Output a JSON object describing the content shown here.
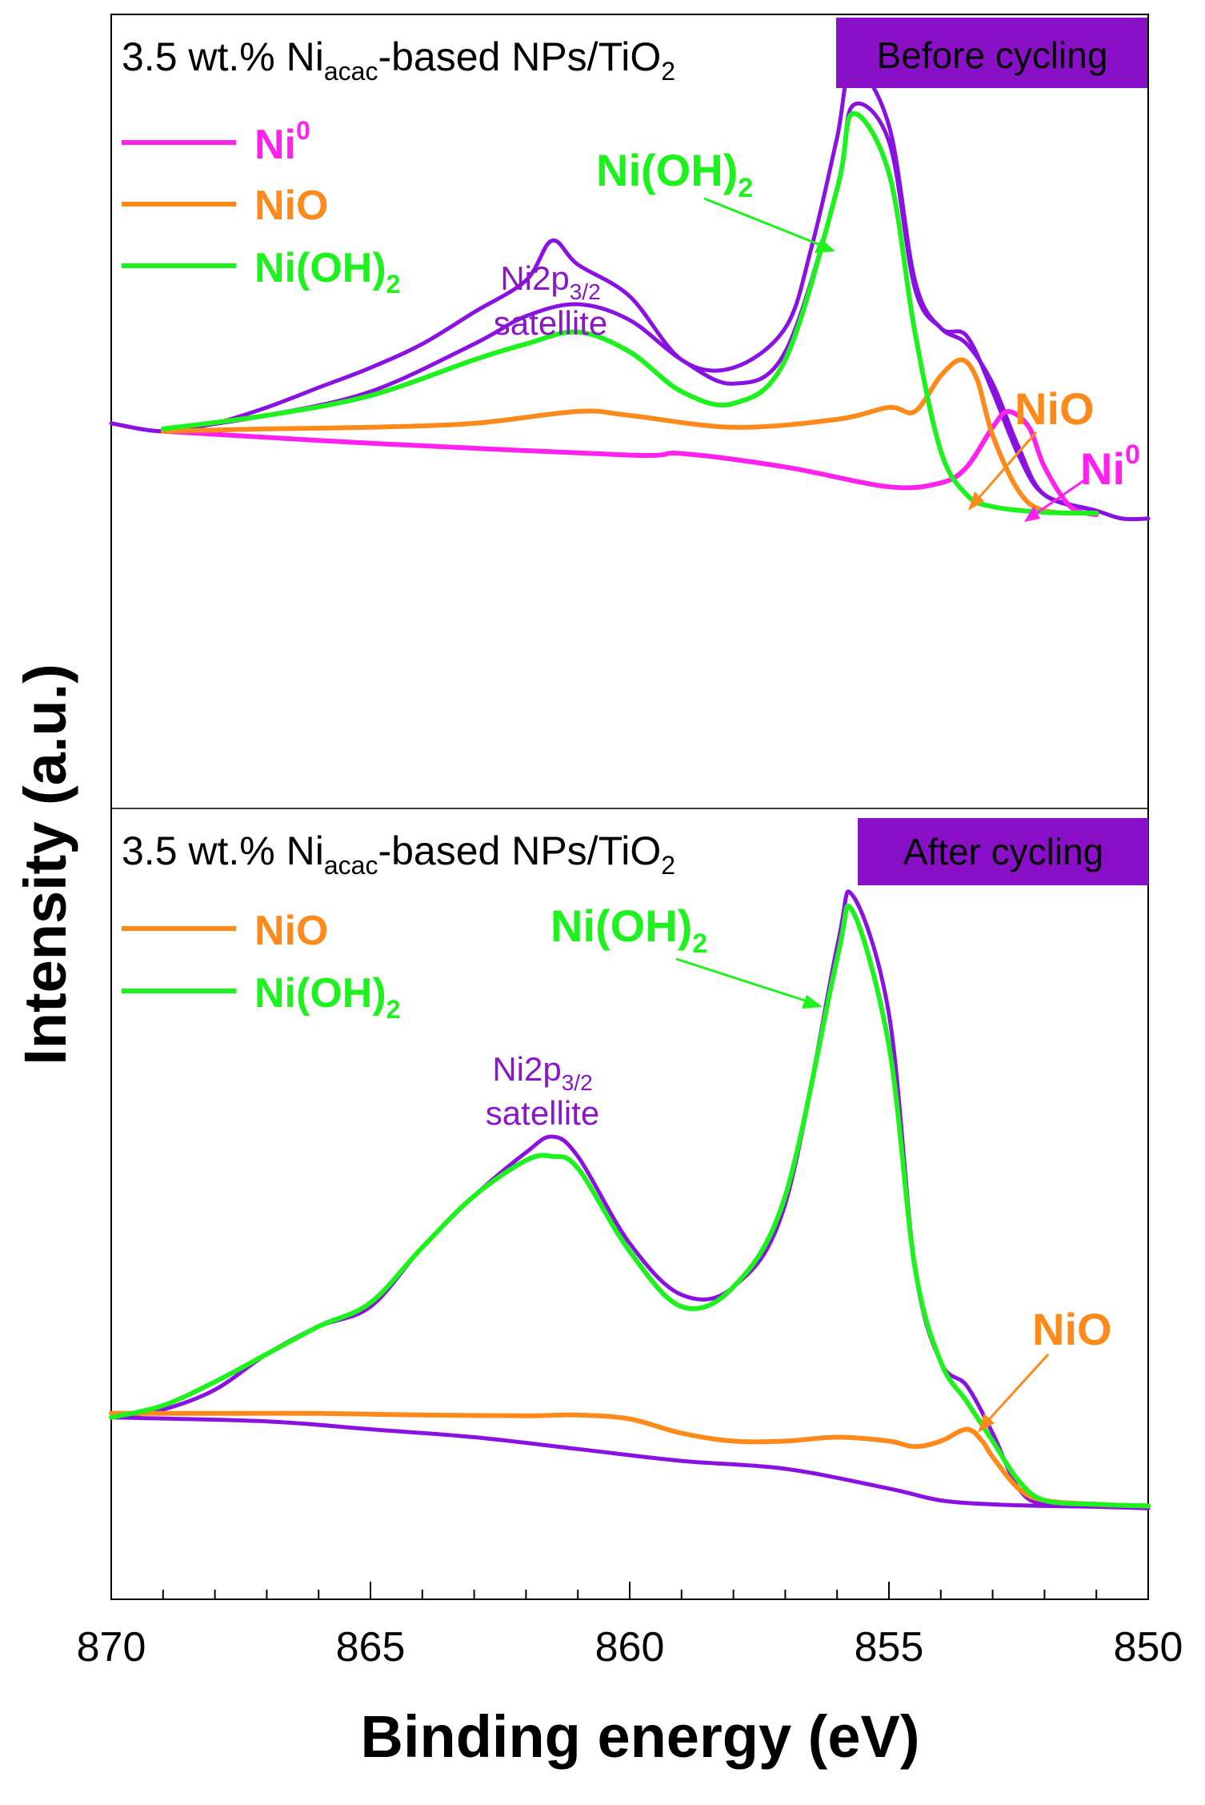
{
  "colors": {
    "measured": "#8a12e0",
    "background": "#8a12e0",
    "ni0": "#ff22ee",
    "nio": "#ff8a1c",
    "nioh2": "#1ef21e",
    "badge_bg": "#8a10c8",
    "badge_text": "#000000",
    "satellite_text": "#8a16c8"
  },
  "axis": {
    "xlabel": "Binding energy (eV)",
    "ylabel": "Intensity (a.u.)",
    "xticks": [
      "870",
      "865",
      "860",
      "855",
      "850"
    ]
  },
  "panels": [
    {
      "title_prefix": "3.5 wt.% Ni",
      "title_sub": "acac",
      "title_middle": "-based NPs/TiO",
      "title_end": "2",
      "badge": "Before cycling",
      "legend": [
        {
          "base": "Ni",
          "sup": "0",
          "sub": "",
          "color_key": "ni0"
        },
        {
          "base": "NiO",
          "sup": "",
          "sub": "",
          "color_key": "nio"
        },
        {
          "base": "Ni(OH)",
          "sup": "",
          "sub": "2",
          "color_key": "nioh2"
        }
      ],
      "annotations": {
        "satellite_line1_base": "Ni2p",
        "satellite_line1_sub": "3/2",
        "satellite_line2": "satellite",
        "nioh2_base": "Ni(OH)",
        "nioh2_sub": "2",
        "nio": "NiO",
        "ni0_base": "Ni",
        "ni0_sup": "0"
      }
    },
    {
      "title_prefix": "3.5 wt.% Ni",
      "title_sub": "acac",
      "title_middle": "-based NPs/TiO",
      "title_end": "2",
      "badge": "After cycling",
      "legend": [
        {
          "base": "NiO",
          "sup": "",
          "sub": "",
          "color_key": "nio"
        },
        {
          "base": "Ni(OH)",
          "sup": "",
          "sub": "2",
          "color_key": "nioh2"
        }
      ],
      "annotations": {
        "satellite_line1_base": "Ni2p",
        "satellite_line1_sub": "3/2",
        "satellite_line2": "satellite",
        "nioh2_base": "Ni(OH)",
        "nioh2_sub": "2",
        "nio": "NiO"
      }
    }
  ],
  "chart_data": [
    {
      "type": "line",
      "panel": "Before cycling",
      "xlabel": "Binding energy (eV)",
      "ylabel": "Intensity (a.u.)",
      "xlim": [
        870,
        850
      ],
      "ylim": [
        0,
        1
      ],
      "x_reversed": true,
      "grid": false,
      "legend_position": "top-left",
      "series": [
        {
          "name": "",
          "color_key": "measured",
          "x": [
            870.0,
            869.0,
            868.0,
            867.0,
            866.0,
            865.0,
            864.0,
            863.0,
            862.0,
            861.5,
            861.0,
            860.0,
            859.0,
            858.0,
            857.0,
            856.5,
            856.0,
            855.7,
            855.0,
            854.5,
            854.0,
            853.5,
            853.0,
            852.5,
            852.0,
            851.0,
            850.5,
            850.0
          ],
          "y": [
            0.485,
            0.475,
            0.485,
            0.505,
            0.53,
            0.555,
            0.585,
            0.625,
            0.665,
            0.715,
            0.685,
            0.645,
            0.565,
            0.555,
            0.605,
            0.705,
            0.845,
            0.935,
            0.86,
            0.665,
            0.605,
            0.595,
            0.525,
            0.445,
            0.395,
            0.375,
            0.365,
            0.365
          ]
        },
        {
          "name": "",
          "color_key": "measured",
          "x": [
            869.0,
            867.0,
            865.0,
            863.0,
            862.0,
            861.0,
            860.0,
            859.0,
            858.0,
            857.0,
            856.0,
            855.7,
            855.0,
            854.5,
            854.0,
            853.5,
            853.0,
            852.5,
            852.0,
            851.0
          ],
          "y": [
            0.475,
            0.495,
            0.525,
            0.585,
            0.62,
            0.635,
            0.615,
            0.565,
            0.535,
            0.575,
            0.78,
            0.885,
            0.84,
            0.655,
            0.605,
            0.585,
            0.535,
            0.455,
            0.395,
            0.375
          ]
        },
        {
          "name": "Ni0",
          "color_key": "ni0",
          "x": [
            869.0,
            865.0,
            860.0,
            859.0,
            857.0,
            855.0,
            854.0,
            853.5,
            853.0,
            852.7,
            852.3,
            852.0,
            851.5,
            851.0
          ],
          "y": [
            0.475,
            0.46,
            0.445,
            0.447,
            0.43,
            0.405,
            0.41,
            0.43,
            0.48,
            0.5,
            0.48,
            0.43,
            0.38,
            0.37
          ]
        },
        {
          "name": "NiO",
          "color_key": "nio",
          "x": [
            869.0,
            867.0,
            865.0,
            863.0,
            861.0,
            860.0,
            858.0,
            856.0,
            855.0,
            854.5,
            854.0,
            853.6,
            853.3,
            853.0,
            852.5,
            852.0,
            851.0
          ],
          "y": [
            0.475,
            0.478,
            0.48,
            0.485,
            0.5,
            0.495,
            0.48,
            0.49,
            0.505,
            0.5,
            0.545,
            0.565,
            0.54,
            0.47,
            0.4,
            0.375,
            0.372
          ]
        },
        {
          "name": "Ni(OH)2",
          "color_key": "nioh2",
          "x": [
            869.0,
            867.0,
            865.0,
            863.0,
            862.0,
            861.0,
            860.0,
            859.0,
            858.0,
            857.0,
            856.0,
            855.7,
            855.0,
            854.5,
            854.0,
            853.5,
            853.0,
            852.0,
            851.0
          ],
          "y": [
            0.478,
            0.495,
            0.52,
            0.565,
            0.585,
            0.6,
            0.575,
            0.525,
            0.51,
            0.565,
            0.78,
            0.875,
            0.8,
            0.6,
            0.45,
            0.395,
            0.38,
            0.373,
            0.372
          ]
        }
      ]
    },
    {
      "type": "line",
      "panel": "After cycling",
      "xlabel": "Binding energy (eV)",
      "ylabel": "Intensity (a.u.)",
      "xlim": [
        870,
        850
      ],
      "ylim": [
        0,
        1
      ],
      "x_reversed": true,
      "grid": false,
      "legend_position": "top-left",
      "series": [
        {
          "name": "",
          "color_key": "measured",
          "x": [
            870.0,
            869.0,
            868.0,
            867.0,
            866.0,
            865.0,
            864.0,
            863.0,
            862.0,
            861.5,
            861.0,
            860.0,
            859.0,
            858.0,
            857.0,
            856.0,
            855.7,
            855.0,
            854.5,
            854.0,
            853.5,
            853.0,
            852.5,
            852.0,
            851.0,
            850.0
          ],
          "y": [
            0.23,
            0.24,
            0.265,
            0.31,
            0.345,
            0.37,
            0.445,
            0.51,
            0.565,
            0.585,
            0.56,
            0.45,
            0.385,
            0.395,
            0.5,
            0.825,
            0.89,
            0.74,
            0.42,
            0.3,
            0.27,
            0.21,
            0.14,
            0.12,
            0.12,
            0.118
          ]
        },
        {
          "name": "",
          "color_key": "background",
          "x": [
            870.0,
            867.0,
            865.0,
            863.0,
            861.0,
            859.0,
            857.0,
            855.0,
            854.0,
            853.0,
            852.0,
            851.0,
            850.0
          ],
          "y": [
            0.23,
            0.225,
            0.215,
            0.205,
            0.19,
            0.175,
            0.165,
            0.14,
            0.125,
            0.12,
            0.118,
            0.117,
            0.115
          ]
        },
        {
          "name": "NiO",
          "color_key": "nio",
          "x": [
            870.0,
            868.0,
            866.0,
            864.0,
            862.0,
            861.0,
            860.0,
            859.0,
            858.0,
            857.0,
            856.0,
            855.0,
            854.5,
            854.0,
            853.5,
            853.2,
            853.0,
            852.5,
            852.0,
            851.0,
            850.0
          ],
          "y": [
            0.235,
            0.235,
            0.235,
            0.233,
            0.232,
            0.233,
            0.228,
            0.21,
            0.2,
            0.2,
            0.205,
            0.2,
            0.193,
            0.2,
            0.215,
            0.2,
            0.18,
            0.14,
            0.125,
            0.12,
            0.118
          ]
        },
        {
          "name": "Ni(OH)2",
          "color_key": "nioh2",
          "x": [
            870.0,
            869.0,
            868.0,
            867.0,
            866.0,
            865.0,
            864.0,
            863.0,
            862.0,
            861.5,
            861.0,
            860.0,
            859.0,
            858.0,
            857.0,
            856.0,
            855.7,
            855.0,
            854.5,
            854.0,
            853.5,
            853.0,
            852.5,
            852.0,
            851.0,
            850.0
          ],
          "y": [
            0.23,
            0.245,
            0.275,
            0.31,
            0.345,
            0.375,
            0.445,
            0.51,
            0.555,
            0.56,
            0.545,
            0.44,
            0.37,
            0.395,
            0.51,
            0.81,
            0.87,
            0.7,
            0.42,
            0.3,
            0.25,
            0.2,
            0.15,
            0.125,
            0.12,
            0.118
          ]
        }
      ]
    }
  ]
}
